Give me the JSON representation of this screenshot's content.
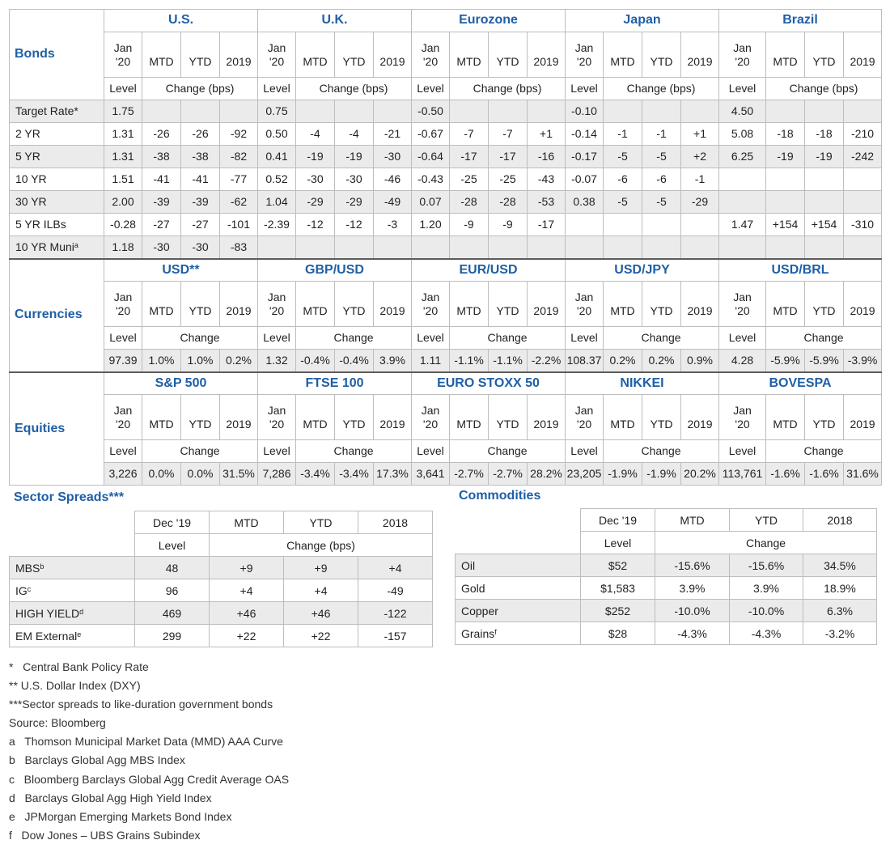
{
  "bonds": {
    "section_label": "Bonds",
    "groups": [
      "U.S.",
      "U.K.",
      "Eurozone",
      "Japan",
      "Brazil"
    ],
    "col_level": [
      "Jan",
      "'20"
    ],
    "col_mtd": "MTD",
    "col_ytd": "YTD",
    "col_prior": "2019",
    "level_label": "Level",
    "change_label": "Change (bps)",
    "rows": [
      {
        "label": "Target Rate*",
        "sup": "",
        "cells": [
          "1.75",
          "",
          "",
          "",
          "0.75",
          "",
          "",
          "",
          "-0.50",
          "",
          "",
          "",
          "-0.10",
          "",
          "",
          "",
          "4.50",
          "",
          "",
          ""
        ]
      },
      {
        "label": "2 YR",
        "sup": "",
        "cells": [
          "1.31",
          "-26",
          "-26",
          "-92",
          "0.50",
          "-4",
          "-4",
          "-21",
          "-0.67",
          "-7",
          "-7",
          "+1",
          "-0.14",
          "-1",
          "-1",
          "+1",
          "5.08",
          "-18",
          "-18",
          "-210"
        ]
      },
      {
        "label": "5 YR",
        "sup": "",
        "cells": [
          "1.31",
          "-38",
          "-38",
          "-82",
          "0.41",
          "-19",
          "-19",
          "-30",
          "-0.64",
          "-17",
          "-17",
          "-16",
          "-0.17",
          "-5",
          "-5",
          "+2",
          "6.25",
          "-19",
          "-19",
          "-242"
        ]
      },
      {
        "label": "10 YR",
        "sup": "",
        "cells": [
          "1.51",
          "-41",
          "-41",
          "-77",
          "0.52",
          "-30",
          "-30",
          "-46",
          "-0.43",
          "-25",
          "-25",
          "-43",
          "-0.07",
          "-6",
          "-6",
          "-1",
          "",
          "",
          "",
          ""
        ]
      },
      {
        "label": "30 YR",
        "sup": "",
        "cells": [
          "2.00",
          "-39",
          "-39",
          "-62",
          "1.04",
          "-29",
          "-29",
          "-49",
          "0.07",
          "-28",
          "-28",
          "-53",
          "0.38",
          "-5",
          "-5",
          "-29",
          "",
          "",
          "",
          ""
        ]
      },
      {
        "label": "5 YR ILBs",
        "sup": "",
        "cells": [
          "-0.28",
          "-27",
          "-27",
          "-101",
          "-2.39",
          "-12",
          "-12",
          "-3",
          "1.20",
          "-9",
          "-9",
          "-17",
          "",
          "",
          "",
          "",
          "1.47",
          "+154",
          "+154",
          "-310"
        ]
      },
      {
        "label": "10 YR Muni",
        "sup": "a",
        "cells": [
          "1.18",
          "-30",
          "-30",
          "-83",
          "",
          "",
          "",
          "",
          "",
          "",
          "",
          "",
          "",
          "",
          "",
          "",
          "",
          "",
          "",
          ""
        ]
      }
    ]
  },
  "currencies": {
    "section_label": "Currencies",
    "groups": [
      "USD**",
      "GBP/USD",
      "EUR/USD",
      "USD/JPY",
      "USD/BRL"
    ],
    "level_label": "Level",
    "change_label": "Change",
    "cells": [
      "97.39",
      "1.0%",
      "1.0%",
      "0.2%",
      "1.32",
      "-0.4%",
      "-0.4%",
      "3.9%",
      "1.11",
      "-1.1%",
      "-1.1%",
      "-2.2%",
      "108.37",
      "0.2%",
      "0.2%",
      "0.9%",
      "4.28",
      "-5.9%",
      "-5.9%",
      "-3.9%"
    ]
  },
  "equities": {
    "section_label": "Equities",
    "groups": [
      "S&P 500",
      "FTSE 100",
      "EURO STOXX 50",
      "NIKKEI",
      "BOVESPA"
    ],
    "level_label": "Level",
    "change_label": "Change",
    "cells": [
      "3,226",
      "0.0%",
      "0.0%",
      "31.5%",
      "7,286",
      "-3.4%",
      "-3.4%",
      "17.3%",
      "3,641",
      "-2.7%",
      "-2.7%",
      "28.2%",
      "23,205",
      "-1.9%",
      "-1.9%",
      "20.2%",
      "113,761",
      "-1.6%",
      "-1.6%",
      "31.6%"
    ]
  },
  "sector_spreads": {
    "title": "Sector Spreads***",
    "headers": [
      "Dec '19",
      "MTD",
      "YTD",
      "2018"
    ],
    "level_label": "Level",
    "change_label": "Change (bps)",
    "rows": [
      {
        "label": "MBS",
        "sup": "b",
        "cells": [
          "48",
          "+9",
          "+9",
          "+4"
        ]
      },
      {
        "label": "IG",
        "sup": "c",
        "cells": [
          "96",
          "+4",
          "+4",
          "-49"
        ]
      },
      {
        "label": "HIGH YIELD",
        "sup": "d",
        "cells": [
          "469",
          "+46",
          "+46",
          "-122"
        ]
      },
      {
        "label": "EM External",
        "sup": "e",
        "cells": [
          "299",
          "+22",
          "+22",
          "-157"
        ]
      }
    ]
  },
  "commodities": {
    "title": "Commodities",
    "headers": [
      "Dec '19",
      "MTD",
      "YTD",
      "2018"
    ],
    "level_label": "Level",
    "change_label": "Change",
    "rows": [
      {
        "label": "Oil",
        "sup": "",
        "cells": [
          "$52",
          "-15.6%",
          "-15.6%",
          "34.5%"
        ]
      },
      {
        "label": "Gold",
        "sup": "",
        "cells": [
          "$1,583",
          "3.9%",
          "3.9%",
          "18.9%"
        ]
      },
      {
        "label": "Copper",
        "sup": "",
        "cells": [
          "$252",
          "-10.0%",
          "-10.0%",
          "6.3%"
        ]
      },
      {
        "label": "Grains",
        "sup": "f",
        "cells": [
          "$28",
          "-4.3%",
          "-4.3%",
          "-3.2%"
        ]
      }
    ]
  },
  "notes": [
    "*   Central Bank Policy Rate",
    "** U.S. Dollar Index (DXY)",
    "***Sector spreads to like-duration government bonds",
    "Source: Bloomberg",
    "a   Thomson Municipal Market Data (MMD) AAA Curve",
    "b   Barclays Global Agg MBS Index",
    "c   Bloomberg Barclays Global Agg Credit Average OAS",
    "d   Barclays Global Agg High Yield Index",
    "e   JPMorgan Emerging Markets Bond Index",
    "f   Dow Jones – UBS Grains Subindex"
  ],
  "colors": {
    "accent": "#1f5fa6",
    "row_shade": "#ebebeb",
    "grid": "#bdbdbd",
    "divider": "#5c5c5c"
  }
}
